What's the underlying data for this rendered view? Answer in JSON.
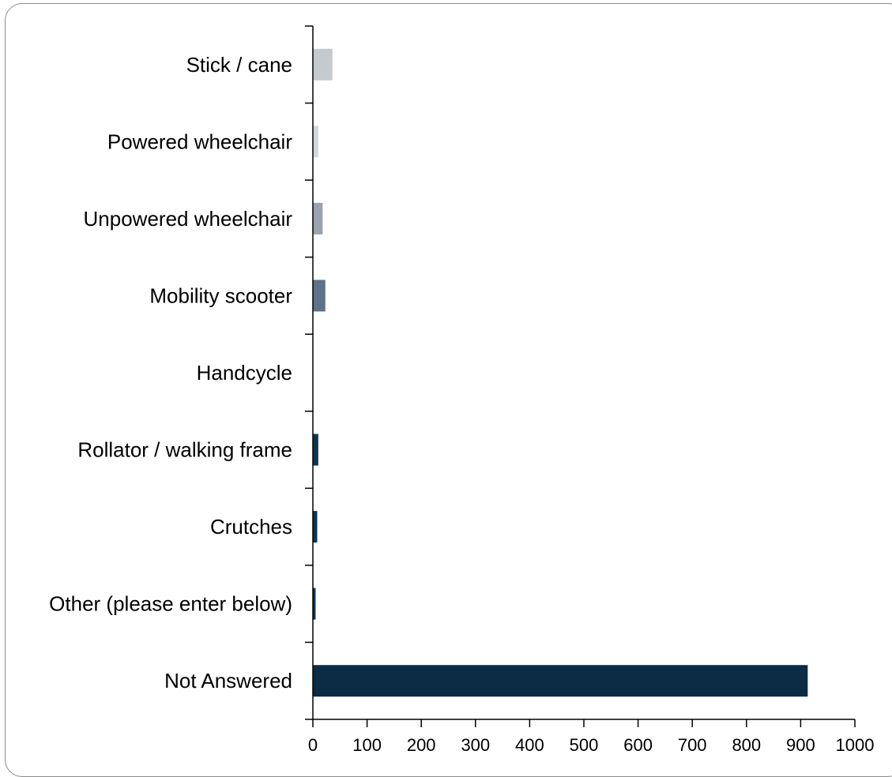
{
  "chart_data": {
    "type": "bar",
    "orientation": "horizontal",
    "title": "",
    "xlabel": "",
    "ylabel": "",
    "categories": [
      "Stick / cane",
      "Powered wheelchair",
      "Unpowered wheelchair",
      "Mobility scooter",
      "Handcycle",
      "Rollator / walking frame",
      "Crutches",
      "Other (please enter below)",
      "Not Answered"
    ],
    "values": [
      36,
      10,
      18,
      23,
      0,
      10,
      8,
      5,
      913
    ],
    "bar_colors": [
      "#c5cacf",
      "#d4d7da",
      "#9aa3ad",
      "#5f7288",
      "#5f7288",
      "#0c3452",
      "#0c3452",
      "#0c3452",
      "#0c2b45"
    ],
    "xlim": [
      0,
      1000
    ],
    "xticks": [
      "0",
      "100",
      "200",
      "300",
      "400",
      "500",
      "600",
      "700",
      "800",
      "900",
      "1000"
    ],
    "grid": false,
    "legend": "none"
  }
}
